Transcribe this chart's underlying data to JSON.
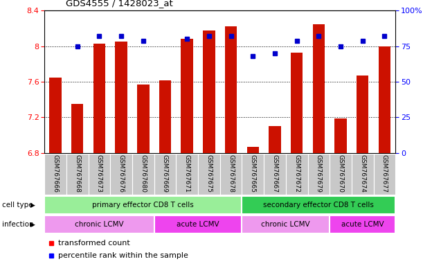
{
  "title": "GDS4555 / 1428023_at",
  "samples": [
    "GSM767666",
    "GSM767668",
    "GSM767673",
    "GSM767676",
    "GSM767680",
    "GSM767669",
    "GSM767671",
    "GSM767675",
    "GSM767678",
    "GSM767665",
    "GSM767667",
    "GSM767672",
    "GSM767679",
    "GSM767670",
    "GSM767674",
    "GSM767677"
  ],
  "red_values": [
    7.65,
    7.35,
    8.03,
    8.05,
    7.57,
    7.62,
    8.08,
    8.18,
    8.22,
    6.87,
    7.1,
    7.93,
    8.25,
    7.19,
    7.67,
    8.0
  ],
  "blue_values": [
    null,
    75,
    82,
    82,
    79,
    null,
    80,
    82,
    82,
    68,
    70,
    79,
    82,
    75,
    79,
    82
  ],
  "ylim_left": [
    6.8,
    8.4
  ],
  "ylim_right": [
    0,
    100
  ],
  "yticks_left": [
    6.8,
    7.2,
    7.6,
    8.0,
    8.4
  ],
  "yticks_right": [
    0,
    25,
    50,
    75,
    100
  ],
  "ytick_labels_left": [
    "6.8",
    "7.2",
    "7.6",
    "8",
    "8.4"
  ],
  "ytick_labels_right": [
    "0",
    "25",
    "50",
    "75",
    "100%"
  ],
  "grid_values": [
    7.2,
    7.6,
    8.0
  ],
  "cell_type_groups": [
    {
      "label": "primary effector CD8 T cells",
      "start": 0,
      "end": 9,
      "color": "#99EE99"
    },
    {
      "label": "secondary effector CD8 T cells",
      "start": 9,
      "end": 16,
      "color": "#33CC55"
    }
  ],
  "infection_groups": [
    {
      "label": "chronic LCMV",
      "start": 0,
      "end": 5,
      "color": "#EE99EE"
    },
    {
      "label": "acute LCMV",
      "start": 5,
      "end": 9,
      "color": "#EE44EE"
    },
    {
      "label": "chronic LCMV",
      "start": 9,
      "end": 13,
      "color": "#EE99EE"
    },
    {
      "label": "acute LCMV",
      "start": 13,
      "end": 16,
      "color": "#EE44EE"
    }
  ],
  "bar_color": "#CC1100",
  "dot_color": "#0000CC",
  "bar_bottom": 6.8,
  "background_color": "#ffffff",
  "legend_red_label": "transformed count",
  "legend_blue_label": "percentile rank within the sample",
  "cell_type_label": "cell type",
  "infection_label": "infection",
  "label_area_color": "#C8C8C8"
}
